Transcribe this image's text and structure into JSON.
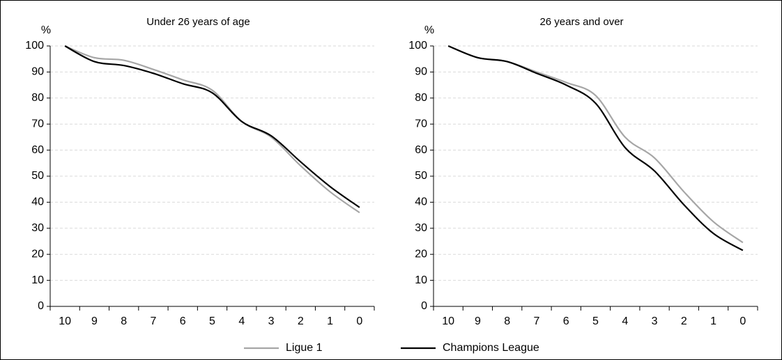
{
  "chart_data": [
    {
      "type": "line",
      "title": "Under 26 years of age",
      "y_label": "%",
      "categories": [
        "10",
        "9",
        "8",
        "7",
        "6",
        "5",
        "4",
        "3",
        "2",
        "1",
        "0"
      ],
      "series": [
        {
          "name": "Ligue 1",
          "color": "#a6a6a6",
          "values": [
            100,
            95.5,
            94.5,
            91,
            87,
            83,
            71,
            65,
            54,
            44,
            36
          ]
        },
        {
          "name": "Champions League",
          "color": "#000000",
          "values": [
            100,
            94,
            92.5,
            89.5,
            85.5,
            82,
            71,
            65.5,
            55.5,
            46,
            38
          ]
        }
      ],
      "ylim": [
        0,
        100
      ],
      "yticks": [
        0,
        10,
        20,
        30,
        40,
        50,
        60,
        70,
        80,
        90,
        100
      ],
      "grid": true
    },
    {
      "type": "line",
      "title": "26 years and over",
      "y_label": "%",
      "categories": [
        "10",
        "9",
        "8",
        "7",
        "6",
        "5",
        "4",
        "3",
        "2",
        "1",
        "0"
      ],
      "series": [
        {
          "name": "Ligue 1",
          "color": "#a6a6a6",
          "values": [
            100,
            95.5,
            94,
            90,
            86,
            81,
            65,
            57,
            44,
            32.5,
            24.5
          ]
        },
        {
          "name": "Champions League",
          "color": "#000000",
          "values": [
            100,
            95.5,
            94,
            89.5,
            85,
            78,
            61,
            52,
            39,
            28,
            21.5
          ]
        }
      ],
      "ylim": [
        0,
        100
      ],
      "yticks": [
        0,
        10,
        20,
        30,
        40,
        50,
        60,
        70,
        80,
        90,
        100
      ],
      "grid": true
    }
  ]
}
